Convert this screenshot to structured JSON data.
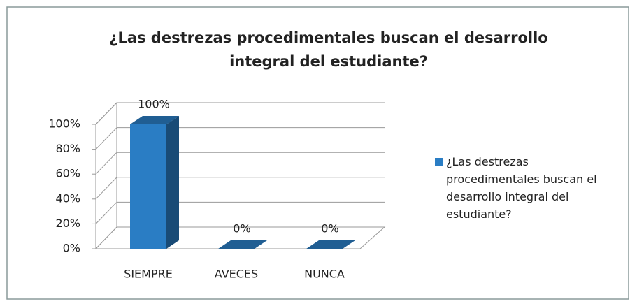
{
  "chart_data": {
    "type": "bar",
    "title": "¿Las destrezas procedimentales buscan el desarrollo integral del estudiante?",
    "categories": [
      "SIEMPRE",
      "AVECES",
      "NUNCA"
    ],
    "series": [
      {
        "name": "¿Las destrezas procedimentales buscan el desarrollo integral del estudiante?",
        "color": "#2a7dc4",
        "values": [
          100,
          0,
          0
        ],
        "value_labels": [
          "100%",
          "0%",
          "0%"
        ]
      }
    ],
    "ylim": [
      0,
      100
    ],
    "yticks": [
      {
        "value": 0,
        "label": "0%"
      },
      {
        "value": 20,
        "label": "20%"
      },
      {
        "value": 40,
        "label": "40%"
      },
      {
        "value": 60,
        "label": "60%"
      },
      {
        "value": 80,
        "label": "80%"
      },
      {
        "value": 100,
        "label": "100%"
      }
    ],
    "grid": true,
    "legend": "right"
  }
}
